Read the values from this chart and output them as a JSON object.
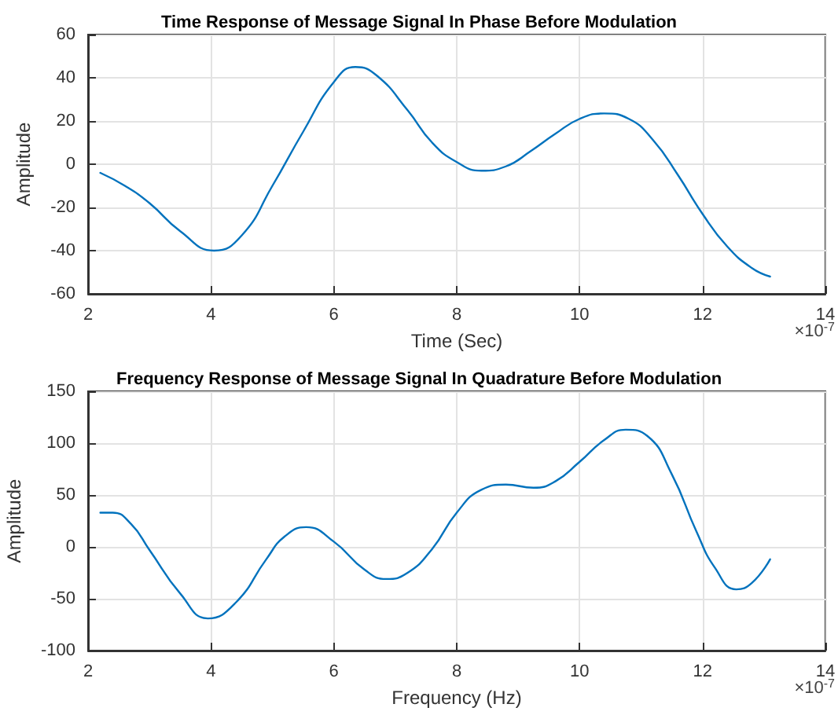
{
  "chart_data": [
    {
      "type": "line",
      "title": "Time Response of Message Signal In Phase Before Modulation",
      "xlabel": "Time (Sec)",
      "ylabel": "Amplitude",
      "annotations": [
        "×10$^{-7}$"
      ],
      "series": [
        {
          "color": "#0072bd",
          "x": [
            2.2,
            2.6,
            3.0,
            3.5,
            4.05,
            4.5,
            5.0,
            5.5,
            6.0,
            6.35,
            6.7,
            7.2,
            7.6,
            8.0,
            8.4,
            8.8,
            9.2,
            9.6,
            10.0,
            10.4,
            10.8,
            11.2,
            11.6,
            12.0,
            12.4,
            12.8,
            13.1
          ],
          "values": [
            -4,
            -10,
            -18,
            -31,
            -40,
            -33,
            -10,
            15,
            38,
            45,
            41,
            25,
            10,
            1,
            -3,
            -1,
            6,
            14,
            21,
            23.5,
            21,
            11,
            -5,
            -23,
            -38,
            -48,
            -52
          ]
        }
      ],
      "xlim": [
        2,
        14
      ],
      "xticks": [
        2,
        4,
        6,
        8,
        10,
        12,
        14
      ],
      "ylim": [
        -60,
        60
      ],
      "yticks": [
        -60,
        -40,
        -20,
        0,
        20,
        40,
        60
      ],
      "grid": true,
      "line_style": "solid"
    },
    {
      "type": "line",
      "title": "Frequency Response of Message Signal In Quadrature Before Modulation",
      "xlabel": "Frequency (Hz)",
      "ylabel": "Amplitude",
      "annotations": [
        "×10$^{-7}$"
      ],
      "series": [
        {
          "color": "#0072bd",
          "x": [
            2.2,
            2.4,
            2.7,
            3.0,
            3.5,
            3.95,
            4.4,
            4.9,
            5.2,
            5.55,
            6.0,
            6.5,
            6.85,
            7.2,
            7.6,
            8.0,
            8.4,
            8.8,
            9.25,
            9.6,
            10.0,
            10.4,
            10.75,
            11.1,
            11.5,
            11.9,
            12.2,
            12.55,
            12.8,
            13.1
          ],
          "values": [
            33,
            33,
            22,
            -3,
            -45,
            -69,
            -54,
            -12,
            10,
            19,
            5,
            -22,
            -31,
            -25,
            -2,
            33,
            55,
            60,
            57,
            63,
            82,
            103,
            113,
            107,
            70,
            15,
            -20,
            -41,
            -35,
            -12
          ]
        }
      ],
      "xlim": [
        2,
        14
      ],
      "xticks": [
        2,
        4,
        6,
        8,
        10,
        12,
        14
      ],
      "ylim": [
        -100,
        150
      ],
      "yticks": [
        -100,
        -50,
        0,
        50,
        100,
        150
      ],
      "grid": true,
      "line_style": "solid"
    }
  ]
}
